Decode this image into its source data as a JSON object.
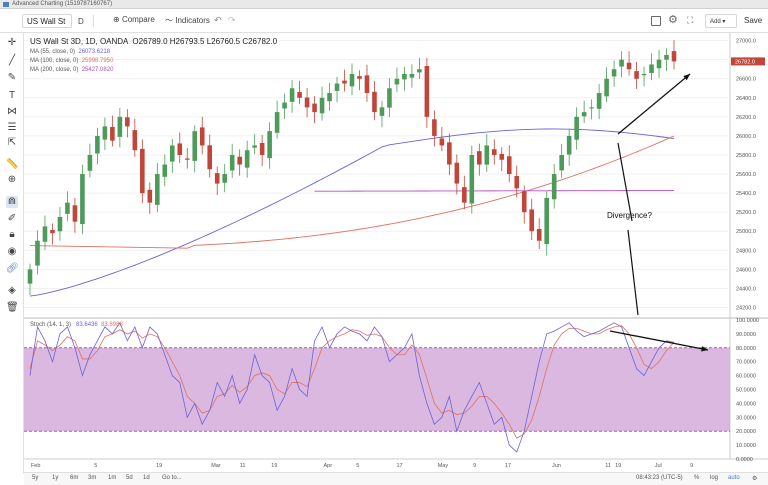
{
  "window": {
    "title": "Advanced Charting (1519787160767)"
  },
  "toolbar": {
    "symbol": "US Wall St",
    "resolution": "D",
    "compare": "Compare",
    "indicators": "Indicators",
    "layout": "Add",
    "save": "Save"
  },
  "legend": {
    "main": "US Wall St 3D, 1D, OANDA",
    "o": "O26789.0",
    "h": "H26793.5",
    "l": "L26760.5",
    "c": "C26782.0",
    "ma55": {
      "label": "MA (55, close, 0)",
      "value": "26073.6218",
      "color": "#6b62d8"
    },
    "ma100": {
      "label": "MA (100, close, 0)",
      "value": "25998.7950",
      "color": "#e07060"
    },
    "ma200": {
      "label": "MA (200, close, 0)",
      "value": "25427.0820",
      "color": "#b050c0"
    }
  },
  "stoch": {
    "label": "Stoch (14, 1, 3)",
    "k": "83.6436",
    "d": "83.8988"
  },
  "annotation": "Divergence?",
  "price_axis": [
    "27000.0",
    "26800.0",
    "26600.0",
    "26400.0",
    "26200.0",
    "26000.0",
    "25800.0",
    "25600.0",
    "25400.0",
    "25200.0",
    "25000.0",
    "24800.0",
    "24600.0",
    "24400.0",
    "24200.0"
  ],
  "last_price": "26782.0",
  "stoch_axis": [
    "100.0000",
    "90.0000",
    "80.0000",
    "70.0000",
    "60.0000",
    "50.0000",
    "40.0000",
    "30.0000",
    "20.0000",
    "10.0000",
    "0.0000"
  ],
  "time_axis": [
    "Feb",
    "5",
    "19",
    "Mar",
    "11",
    "19",
    "Apr",
    "5",
    "17",
    "May",
    "9",
    "17",
    "Jun",
    "11",
    "19",
    "Jul",
    "9",
    "1"
  ],
  "bottom": {
    "ranges": [
      "5y",
      "1y",
      "6m",
      "3m",
      "1m",
      "5d",
      "1d",
      "Go to..."
    ],
    "time": "08:43:23 (UTC-5)",
    "pct": "%",
    "log": "log",
    "auto": "auto"
  },
  "chart_data": [
    {
      "type": "candlestick",
      "series": [
        {
          "name": "US Wall St",
          "close_last": 26782.0,
          "closes": [
            24600,
            24900,
            25050,
            24980,
            25150,
            25300,
            25100,
            25600,
            25800,
            26000,
            26100,
            25950,
            26200,
            26100,
            25850,
            25400,
            25300,
            25600,
            25700,
            25900,
            25800,
            25750,
            26050,
            25900,
            25650,
            25500,
            25600,
            25800,
            25700,
            25850,
            25900,
            25800,
            26050,
            26250,
            26350,
            26500,
            26400,
            26300,
            26250,
            26400,
            26450,
            26550,
            26550,
            26650,
            26600,
            26450,
            26250,
            26300,
            26500,
            26600,
            26650,
            26650,
            26700,
            26200,
            26000,
            25900,
            25700,
            25500,
            25300,
            25800,
            25700,
            25900,
            25800,
            25750,
            25600,
            25450,
            25200,
            25000,
            24900,
            25350,
            25600,
            25800,
            26000,
            26200,
            26250,
            26300,
            26450,
            26600,
            26700,
            26800,
            26700,
            26600,
            26650,
            26750,
            26800,
            26850,
            26782
          ],
          "x_index_count": 87
        }
      ],
      "ma55": {
        "from": 24320,
        "to": 26073
      },
      "ma100": {
        "from": 24850,
        "to": 25999
      },
      "ma200": {
        "from": 25420,
        "to": 25427
      },
      "ylim": [
        24100,
        27080
      ]
    },
    {
      "type": "line",
      "name": "Stoch",
      "ylim": [
        0,
        100
      ],
      "bands": [
        20,
        80
      ],
      "k": [
        60,
        95,
        85,
        70,
        90,
        95,
        80,
        60,
        75,
        85,
        95,
        90,
        98,
        85,
        95,
        80,
        95,
        90,
        75,
        60,
        55,
        30,
        40,
        25,
        35,
        55,
        45,
        60,
        40,
        50,
        75,
        60,
        55,
        35,
        45,
        65,
        50,
        45,
        85,
        95,
        80,
        90,
        95,
        92,
        90,
        85,
        95,
        88,
        70,
        75,
        80,
        90,
        60,
        40,
        25,
        30,
        45,
        20,
        35,
        45,
        55,
        40,
        25,
        30,
        10,
        5,
        20,
        45,
        70,
        90,
        92,
        95,
        98,
        92,
        88,
        90,
        92,
        95,
        98,
        95,
        80,
        65,
        60,
        70,
        80,
        85,
        84
      ],
      "d": [
        65,
        85,
        82,
        78,
        82,
        88,
        85,
        72,
        72,
        78,
        88,
        90,
        93,
        90,
        92,
        87,
        90,
        88,
        80,
        70,
        60,
        45,
        40,
        33,
        35,
        45,
        47,
        53,
        48,
        52,
        60,
        62,
        60,
        50,
        47,
        55,
        55,
        52,
        65,
        80,
        85,
        88,
        90,
        93,
        92,
        89,
        90,
        88,
        80,
        75,
        75,
        82,
        75,
        58,
        40,
        33,
        35,
        32,
        33,
        38,
        45,
        45,
        40,
        33,
        25,
        15,
        18,
        28,
        45,
        65,
        82,
        90,
        94,
        94,
        92,
        90,
        90,
        93,
        95,
        96,
        90,
        80,
        68,
        65,
        70,
        78,
        84
      ]
    }
  ]
}
